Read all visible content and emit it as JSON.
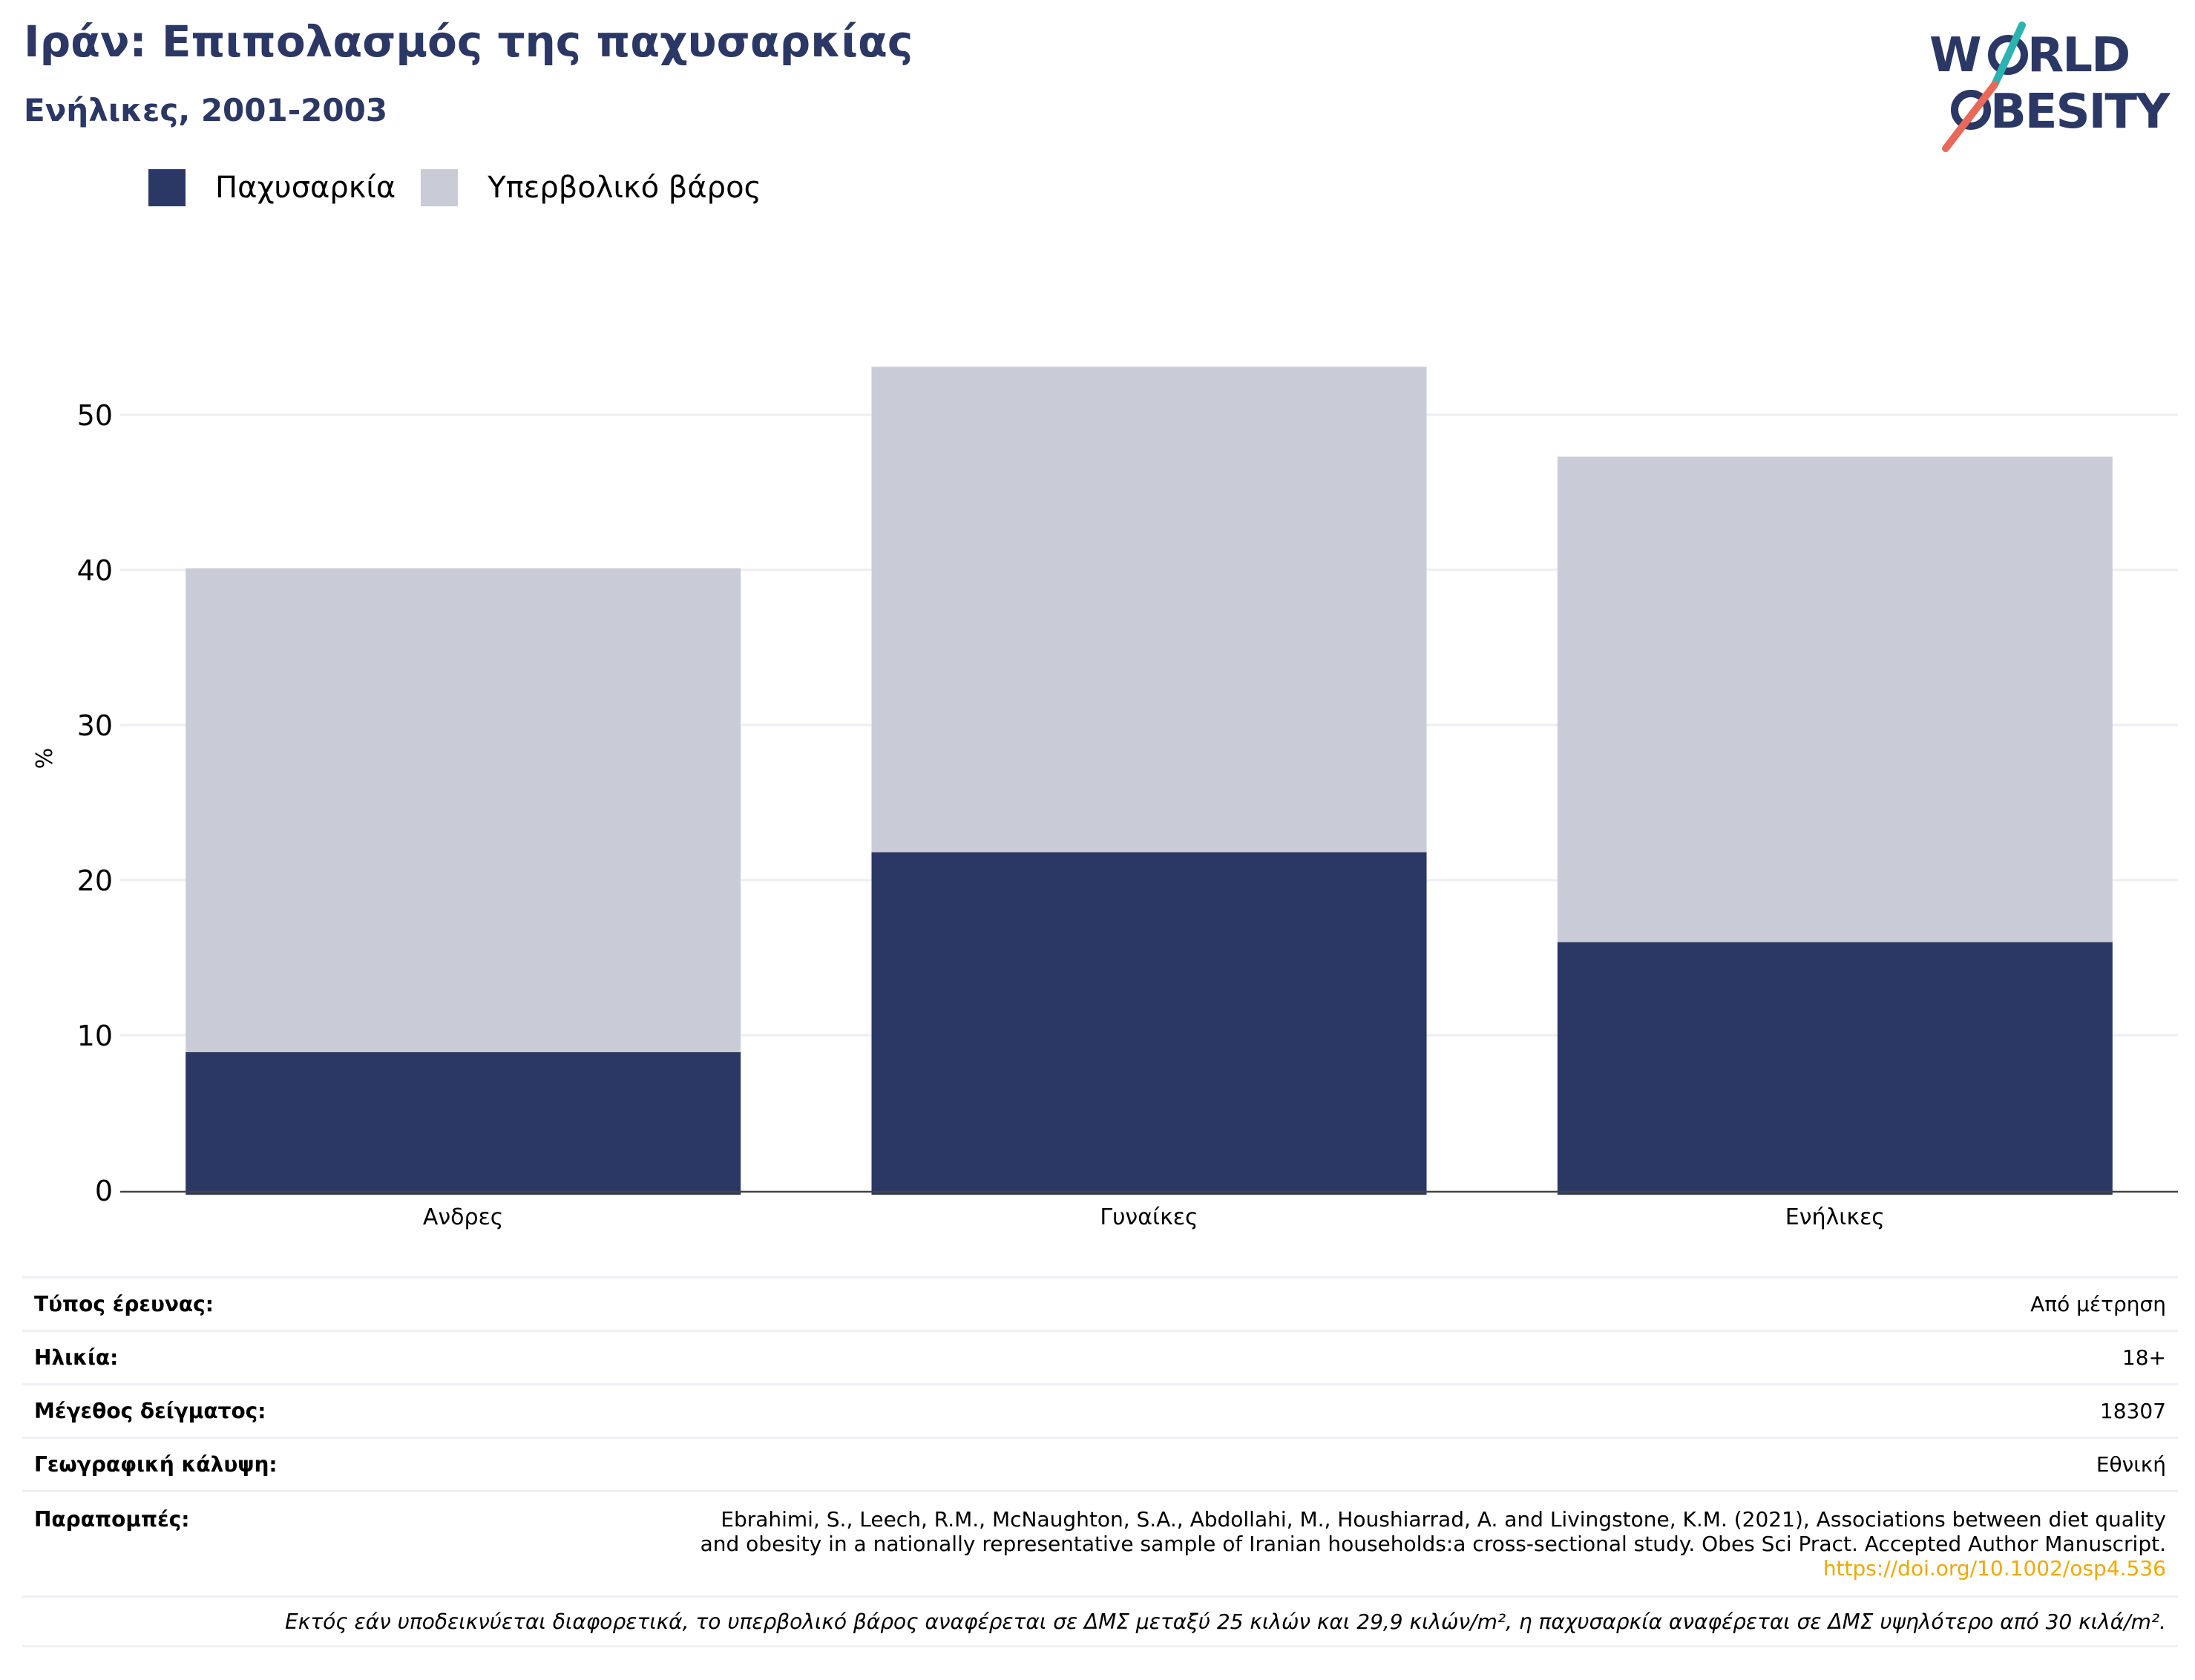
{
  "header": {
    "title": "Ιράν: Επιπολασμός της παχυσαρκίας",
    "subtitle": "Ενήλικες, 2001-2003"
  },
  "logo": {
    "line1": "WORLD",
    "line2": "OBESITY",
    "colors": {
      "navy": "#2b3764",
      "teal": "#2bb3b1",
      "coral": "#e8685a"
    }
  },
  "legend": [
    {
      "label": "Παχυσαρκία",
      "color": "#2b3764"
    },
    {
      "label": "Υπερβολικό βάρος",
      "color": "#c9cbd7"
    }
  ],
  "chart_data": {
    "type": "bar",
    "stacked": true,
    "categories": [
      "Ανδρες",
      "Γυναίκες",
      "Ενήλικες"
    ],
    "series": [
      {
        "name": "Παχυσαρκία",
        "color": "#2b3764",
        "values": [
          8.9,
          21.8,
          16.0
        ]
      },
      {
        "name": "Υπερβολικό βάρος",
        "color": "#c9cbd7",
        "values": [
          31.2,
          31.3,
          31.3
        ]
      }
    ],
    "ylabel": "%",
    "yticks": [
      0,
      10,
      20,
      30,
      40,
      50
    ],
    "ylim": [
      0,
      55
    ],
    "grid": true,
    "legend_position": "top-left"
  },
  "info": {
    "rows": [
      {
        "label": "Τύπος έρευνας:",
        "value": "Από μέτρηση"
      },
      {
        "label": "Ηλικία:",
        "value": "18+"
      },
      {
        "label": "Μέγεθος δείγματος:",
        "value": "18307"
      },
      {
        "label": "Γεωγραφική κάλυψη:",
        "value": "Εθνική"
      }
    ],
    "references": {
      "label": "Παραπομπές:",
      "line1": "Ebrahimi, S., Leech, R.M., McNaughton, S.A., Abdollahi, M., Houshiarrad, A. and Livingstone, K.M. (2021), Associations between diet quality",
      "line2": "and obesity in a nationally representative sample of Iranian households:a cross-sectional study. Obes Sci Pract. Accepted Author Manuscript.",
      "link": "https://doi.org/10.1002/osp4.536"
    },
    "note": "Εκτός εάν υποδεικνύεται διαφορετικά, το υπερβολικό βάρος αναφέρεται σε ΔΜΣ μεταξύ 25 κιλών και 29,9 κιλών/m², η παχυσαρκία αναφέρεται σε ΔΜΣ υψηλότερο από 30 κιλά/m²."
  }
}
